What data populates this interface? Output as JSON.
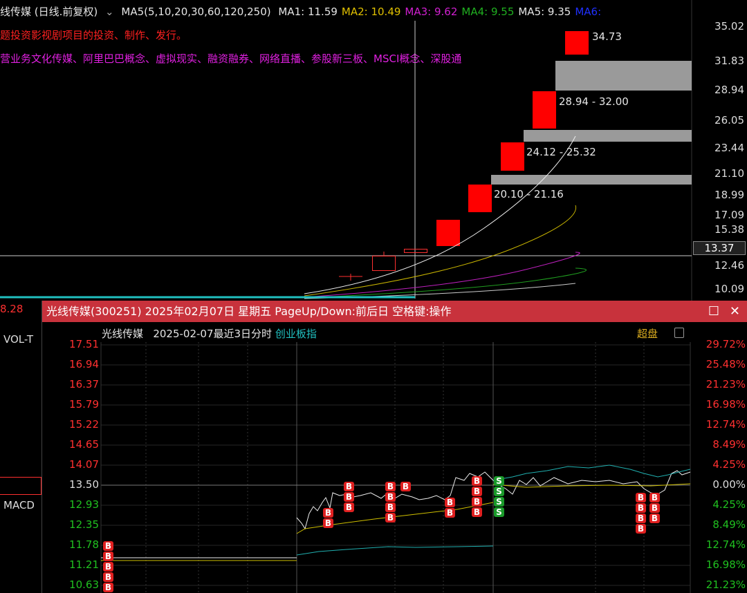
{
  "main_chart": {
    "title": "线传媒 (日线.前复权)",
    "ma_params": "MA5(5,10,20,30,60,120,250)",
    "ma_values": [
      {
        "label": "MA1: 11.59",
        "color": "#e6e6e6"
      },
      {
        "label": "MA2: 10.49",
        "color": "#e0c000"
      },
      {
        "label": "MA3: 9.62",
        "color": "#d020d0"
      },
      {
        "label": "MA4: 9.55",
        "color": "#20b020"
      },
      {
        "label": "MA5: 9.35",
        "color": "#e6e6e6"
      },
      {
        "label": "MA6:",
        "color": "#2030ff"
      }
    ],
    "info_line1": "题投资影视剧项目的投资、制作、发行。",
    "info_line2": "营业务文化传媒、阿里巴巴概念、虚拟现实、融资融券、网络直播、参股新三板、MSCI概念、深股通",
    "high_label": "34.73",
    "gap_labels": [
      "28.94 - 32.00",
      "24.12 - 25.32",
      "20.10 - 21.16"
    ],
    "price_axis": [
      "35.02",
      "31.83",
      "28.94",
      "26.05",
      "23.44",
      "21.10",
      "18.99",
      "17.09",
      "15.38",
      "12.46",
      "10.09"
    ],
    "crosshair_price": "13.37",
    "left_remnants": {
      "value": "8.28",
      "vol": "VOL-T",
      "macd": "MACD"
    }
  },
  "popup": {
    "title": "光线传媒(300251) 2025年02月07日 星期五 PageUp/Down:前后日 空格键:操作",
    "stock_name": "光线传媒",
    "period": "2025-02-07最近3日分时",
    "index_link": "创业板指",
    "overlay_label": "超盘",
    "left_axis": [
      "17.51",
      "16.94",
      "16.37",
      "15.79",
      "15.22",
      "14.65",
      "14.07",
      "13.50",
      "12.93",
      "12.35",
      "11.78",
      "11.21",
      "10.63"
    ],
    "right_axis": [
      "29.72%",
      "25.48%",
      "21.23%",
      "16.98%",
      "12.74%",
      "8.49%",
      "4.25%",
      "0.00%",
      "4.25%",
      "8.49%",
      "12.74%",
      "16.98%",
      "21.23%"
    ],
    "marker_buy": "B",
    "marker_sell": "S",
    "colors": {
      "up": "#ff3030",
      "down": "#20c020",
      "neutral": "#e6e6e6",
      "titlebar": "#c8323c"
    }
  }
}
